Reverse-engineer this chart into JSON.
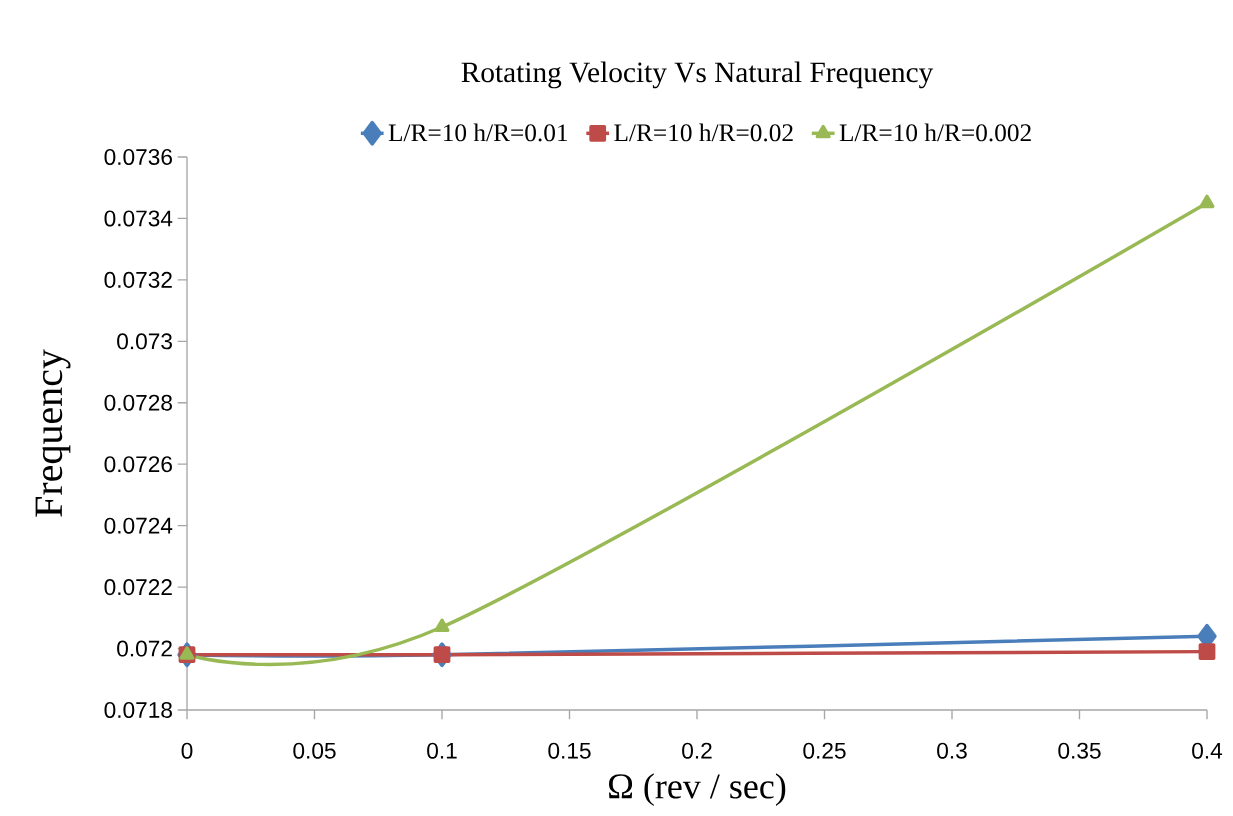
{
  "chart_data": {
    "type": "line",
    "title": "Rotating Velocity Vs Natural Frequency",
    "xlabel": "Ω (rev / sec)",
    "ylabel": "Frequency",
    "x": [
      0,
      0.1,
      0.4
    ],
    "series": [
      {
        "name": "L/R=10  h/R=0.01",
        "color": "#4a7ebb",
        "marker": "diamond",
        "values": [
          0.07198,
          0.07198,
          0.07204
        ]
      },
      {
        "name": "L/R=10  h/R=0.02",
        "color": "#be4b48",
        "marker": "square",
        "values": [
          0.07198,
          0.07198,
          0.07199
        ]
      },
      {
        "name": "L/R=10  h/R=0.002",
        "color": "#98b954",
        "marker": "triangle",
        "values": [
          0.07198,
          0.07207,
          0.07345
        ]
      }
    ],
    "xlim": [
      0,
      0.4
    ],
    "xticks": [
      0,
      0.05,
      0.1,
      0.15,
      0.2,
      0.25,
      0.3,
      0.35,
      0.4
    ],
    "ylim": [
      0.0718,
      0.0736
    ],
    "yticks": [
      0.0718,
      0.072,
      0.0722,
      0.0724,
      0.0726,
      0.0728,
      0.073,
      0.0732,
      0.0734,
      0.0736
    ],
    "grid": false,
    "legend": "top",
    "line_style": "solid"
  }
}
